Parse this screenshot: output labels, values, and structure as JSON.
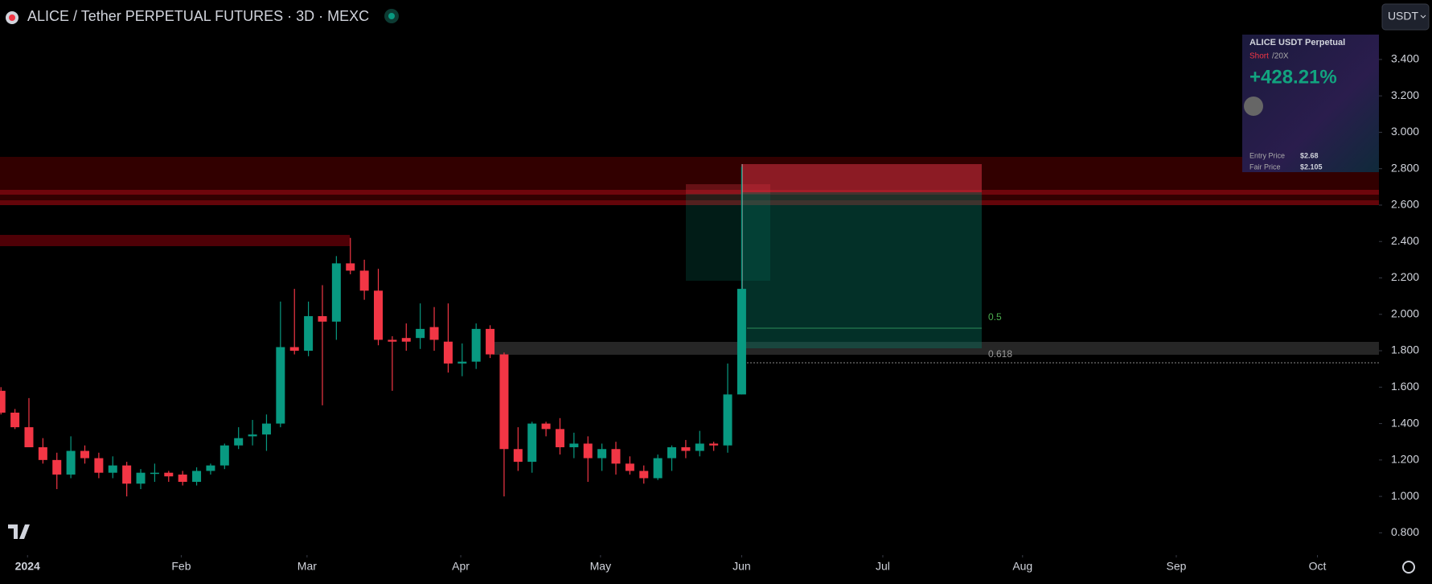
{
  "header": {
    "title": "ALICE / Tether PERPETUAL FUTURES · 3D · MEXC",
    "currency_button": "USDT"
  },
  "chart_data": {
    "type": "candlestick",
    "open": [
      1.58,
      1.46,
      1.38,
      1.27,
      1.2,
      1.12,
      1.25,
      1.21,
      1.13,
      1.17,
      1.07,
      1.13,
      1.13,
      1.12,
      1.08,
      1.14,
      1.17,
      1.28,
      1.33,
      1.34,
      1.4,
      1.82,
      1.8,
      1.99,
      1.96,
      2.28,
      2.24,
      2.13,
      1.86,
      1.87,
      1.87,
      1.93,
      1.85,
      1.73,
      1.74,
      1.92,
      1.78,
      1.26,
      1.19,
      1.4,
      1.37,
      1.27,
      1.29,
      1.21,
      1.26,
      1.18,
      1.14,
      1.1,
      1.21,
      1.27,
      1.25,
      1.29,
      1.28,
      1.56
    ],
    "high": [
      1.6,
      1.48,
      1.54,
      1.32,
      1.24,
      1.33,
      1.28,
      1.24,
      1.22,
      1.19,
      1.15,
      1.18,
      1.14,
      1.14,
      1.16,
      1.18,
      1.29,
      1.38,
      1.42,
      1.45,
      2.07,
      2.14,
      2.07,
      2.16,
      2.32,
      2.42,
      2.3,
      2.25,
      1.88,
      1.95,
      2.06,
      2.04,
      2.06,
      1.84,
      1.95,
      1.94,
      1.79,
      1.38,
      1.41,
      1.41,
      1.43,
      1.35,
      1.33,
      1.29,
      1.3,
      1.22,
      1.17,
      1.23,
      1.28,
      1.31,
      1.36,
      1.3,
      1.73,
      2.81
    ],
    "low": [
      1.45,
      1.37,
      1.27,
      1.18,
      1.04,
      1.1,
      1.18,
      1.1,
      1.1,
      1.0,
      1.04,
      1.08,
      1.08,
      1.06,
      1.06,
      1.12,
      1.15,
      1.26,
      1.28,
      1.25,
      1.38,
      1.78,
      1.77,
      1.5,
      1.86,
      2.22,
      2.08,
      1.83,
      1.58,
      1.8,
      1.81,
      1.8,
      1.68,
      1.66,
      1.7,
      1.76,
      1.0,
      1.14,
      1.13,
      1.33,
      1.23,
      1.21,
      1.08,
      1.14,
      1.12,
      1.12,
      1.07,
      1.09,
      1.14,
      1.21,
      1.22,
      1.25,
      1.24,
      1.56
    ],
    "close": [
      1.46,
      1.38,
      1.27,
      1.2,
      1.12,
      1.25,
      1.21,
      1.13,
      1.17,
      1.07,
      1.13,
      1.13,
      1.11,
      1.08,
      1.14,
      1.17,
      1.28,
      1.32,
      1.34,
      1.4,
      1.82,
      1.8,
      1.99,
      1.96,
      2.28,
      2.24,
      2.13,
      1.86,
      1.85,
      1.85,
      1.92,
      1.86,
      1.73,
      1.74,
      1.92,
      1.78,
      1.26,
      1.19,
      1.4,
      1.37,
      1.27,
      1.29,
      1.21,
      1.26,
      1.18,
      1.14,
      1.1,
      1.21,
      1.27,
      1.25,
      1.29,
      1.28,
      1.56,
      2.14
    ],
    "up_color": "#089981",
    "down_color": "#f23645",
    "ylim": [
      0.7,
      3.7
    ],
    "yticks": [
      {
        "value": 0.8,
        "label": "0.800"
      },
      {
        "value": 1.0,
        "label": "1.000"
      },
      {
        "value": 1.2,
        "label": "1.200"
      },
      {
        "value": 1.4,
        "label": "1.400"
      },
      {
        "value": 1.6,
        "label": "1.600"
      },
      {
        "value": 1.8,
        "label": "1.800"
      },
      {
        "value": 2.0,
        "label": "2.000"
      },
      {
        "value": 2.2,
        "label": "2.200"
      },
      {
        "value": 2.4,
        "label": "2.400"
      },
      {
        "value": 2.6,
        "label": "2.600"
      },
      {
        "value": 2.8,
        "label": "2.800"
      },
      {
        "value": 3.0,
        "label": "3.000"
      },
      {
        "value": 3.2,
        "label": "3.200"
      },
      {
        "value": 3.4,
        "label": "3.400"
      }
    ],
    "xlim": [
      -0.07,
      98.6
    ],
    "xticks": [
      {
        "value": 1.9,
        "label": "2024"
      },
      {
        "value": 12.9,
        "label": "Feb"
      },
      {
        "value": 21.9,
        "label": "Mar"
      },
      {
        "value": 32.9,
        "label": "Apr"
      },
      {
        "value": 42.9,
        "label": "May"
      },
      {
        "value": 53.0,
        "label": "Jun"
      },
      {
        "value": 63.1,
        "label": "Jul"
      },
      {
        "value": 73.1,
        "label": "Aug"
      },
      {
        "value": 84.1,
        "label": "Sep"
      },
      {
        "value": 94.2,
        "label": "Oct"
      }
    ],
    "fib_levels": [
      0.5,
      0.618
    ]
  },
  "card": {
    "title": "ALICE USDT Perpetual",
    "side": "Short",
    "leverage": "/20X",
    "pnl": "+428.21%",
    "entry_label": "Entry Price",
    "entry_value": "$2.68",
    "fair_label": "Fair Price",
    "fair_value": "$2.105"
  }
}
